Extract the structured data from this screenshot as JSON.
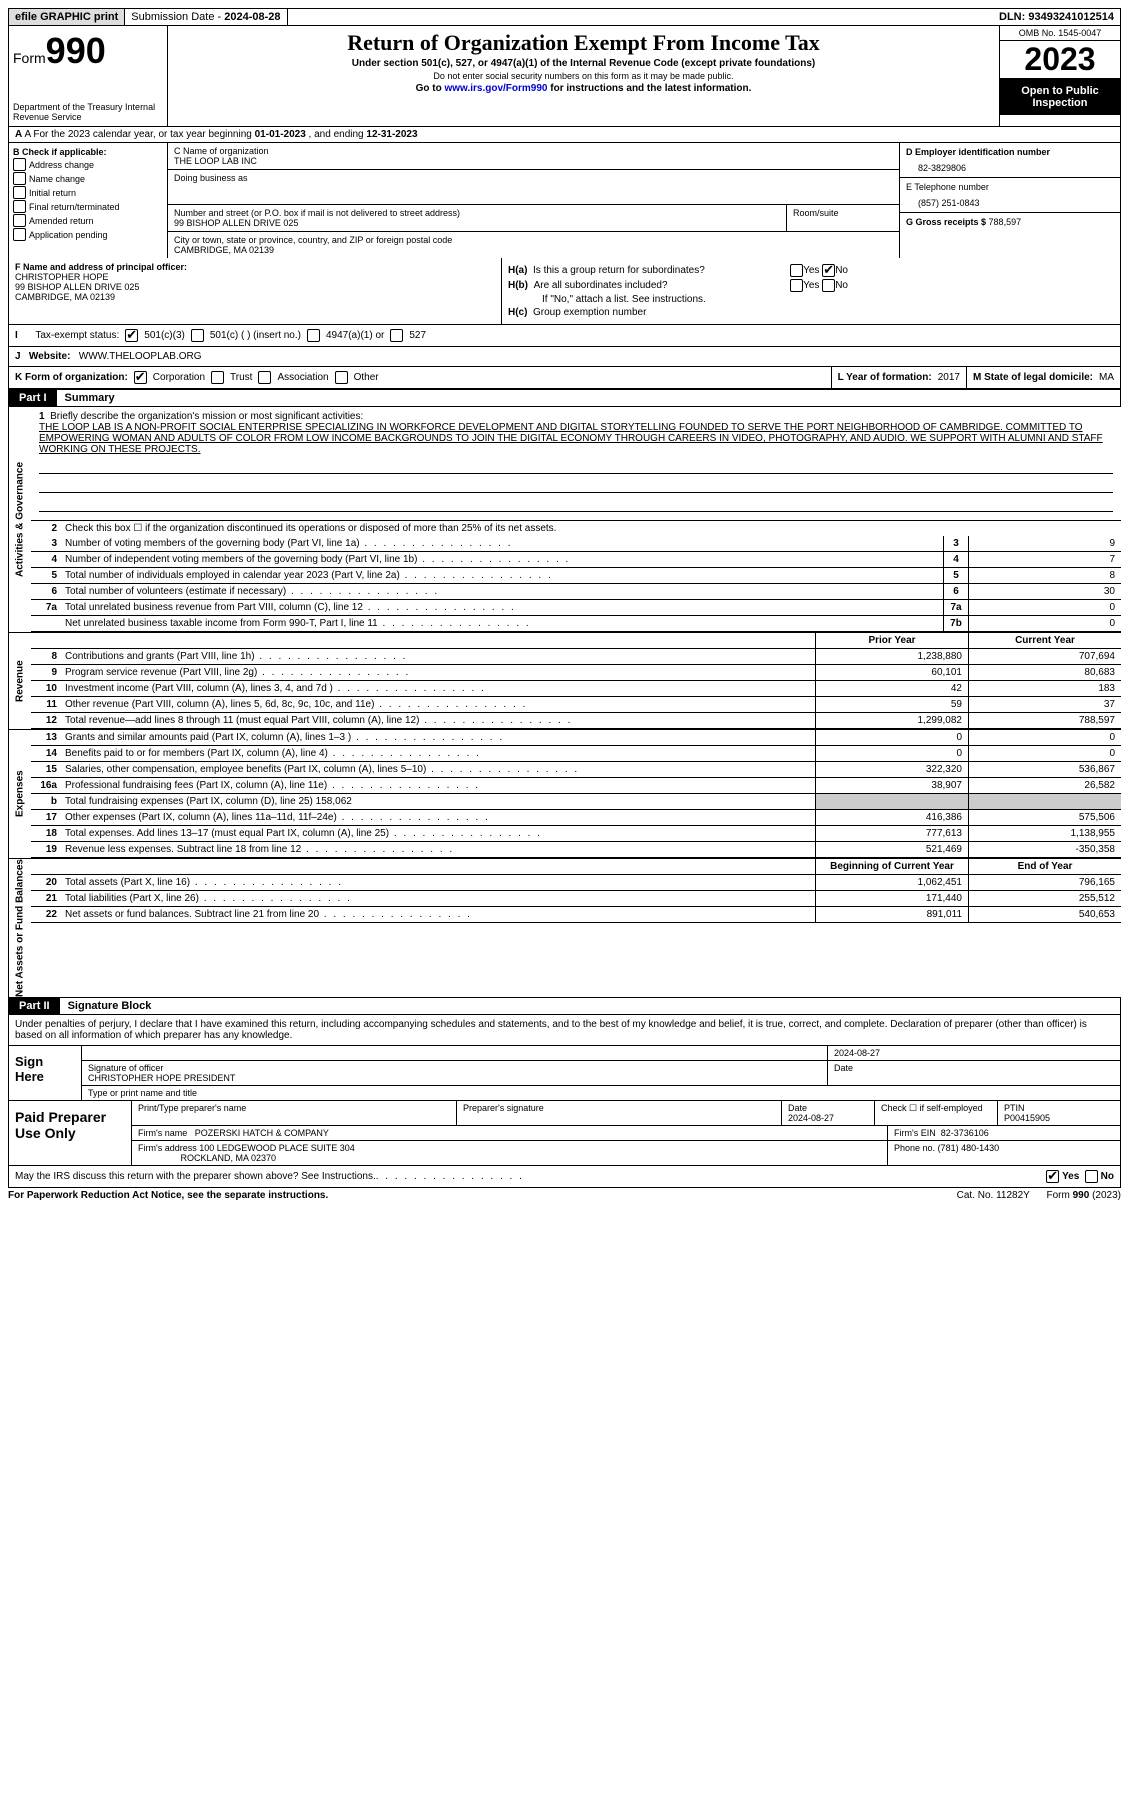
{
  "topbar": {
    "efile": "efile GRAPHIC print",
    "submission_label": "Submission Date - ",
    "submission_date": "2024-08-28",
    "dln_label": "DLN: ",
    "dln": "93493241012514"
  },
  "header": {
    "form_label": "Form",
    "form_num": "990",
    "dept": "Department of the Treasury Internal Revenue Service",
    "title": "Return of Organization Exempt From Income Tax",
    "sub1": "Under section 501(c), 527, or 4947(a)(1) of the Internal Revenue Code (except private foundations)",
    "sub2": "Do not enter social security numbers on this form as it may be made public.",
    "sub3_pre": "Go to ",
    "sub3_link": "www.irs.gov/Form990",
    "sub3_post": " for instructions and the latest information.",
    "omb": "OMB No. 1545-0047",
    "year": "2023",
    "open": "Open to Public Inspection"
  },
  "rowA": {
    "pre": "A For the 2023 calendar year, or tax year beginning ",
    "begin": "01-01-2023",
    "mid": " , and ending ",
    "end": "12-31-2023"
  },
  "colB": {
    "label": "B Check if applicable:",
    "items": [
      "Address change",
      "Name change",
      "Initial return",
      "Final return/terminated",
      "Amended return",
      "Application pending"
    ]
  },
  "colC": {
    "name_label": "C Name of organization",
    "name": "THE LOOP LAB INC",
    "dba_label": "Doing business as",
    "addr_label": "Number and street (or P.O. box if mail is not delivered to street address)",
    "addr": "99 BISHOP ALLEN DRIVE 025",
    "room_label": "Room/suite",
    "city_label": "City or town, state or province, country, and ZIP or foreign postal code",
    "city": "CAMBRIDGE, MA  02139"
  },
  "colD": {
    "ein_label": "D Employer identification number",
    "ein": "82-3829806",
    "phone_label": "E Telephone number",
    "phone": "(857) 251-0843",
    "gross_label": "G Gross receipts $ ",
    "gross": "788,597"
  },
  "rowF": {
    "label": "F Name and address of principal officer:",
    "name": "CHRISTOPHER HOPE",
    "addr1": "99 BISHOP ALLEN DRIVE 025",
    "addr2": "CAMBRIDGE, MA  02139"
  },
  "rowH": {
    "ha": "Is this a group return for subordinates?",
    "hb": "Are all subordinates included?",
    "hb_note": "If \"No,\" attach a list. See instructions.",
    "hc": "Group exemption number",
    "ha_label": "H(a)",
    "hb_label": "H(b)",
    "hc_label": "H(c)",
    "yes": "Yes",
    "no": "No"
  },
  "rowI": {
    "label": "Tax-exempt status:",
    "opt1": "501(c)(3)",
    "opt2": "501(c) (  ) (insert no.)",
    "opt3": "4947(a)(1) or",
    "opt4": "527"
  },
  "rowJ": {
    "label": "Website:",
    "value": "WWW.THELOOPLAB.ORG"
  },
  "rowK": {
    "label": "K Form of organization:",
    "opts": [
      "Corporation",
      "Trust",
      "Association",
      "Other"
    ],
    "L": "L Year of formation: ",
    "L_val": "2017",
    "M": "M State of legal domicile: ",
    "M_val": "MA"
  },
  "part1": {
    "tag": "Part I",
    "title": "Summary"
  },
  "mission": {
    "q": "Briefly describe the organization's mission or most significant activities:",
    "text": "THE LOOP LAB IS A NON-PROFIT SOCIAL ENTERPRISE SPECIALIZING IN WORKFORCE DEVELOPMENT AND DIGITAL STORYTELLING FOUNDED TO SERVE THE PORT NEIGHBORHOOD OF CAMBRIDGE. COMMITTED TO EMPOWERING WOMAN AND ADULTS OF COLOR FROM LOW INCOME BACKGROUNDS TO JOIN THE DIGITAL ECONOMY THROUGH CAREERS IN VIDEO, PHOTOGRAPHY, AND AUDIO. WE SUPPORT WITH ALUMNI AND STAFF WORKING ON THESE PROJECTS."
  },
  "lines_gov": [
    {
      "n": "2",
      "t": "Check this box  ☐  if the organization discontinued its operations or disposed of more than 25% of its net assets."
    },
    {
      "n": "3",
      "t": "Number of voting members of the governing body (Part VI, line 1a)",
      "box": "3",
      "v": "9"
    },
    {
      "n": "4",
      "t": "Number of independent voting members of the governing body (Part VI, line 1b)",
      "box": "4",
      "v": "7"
    },
    {
      "n": "5",
      "t": "Total number of individuals employed in calendar year 2023 (Part V, line 2a)",
      "box": "5",
      "v": "8"
    },
    {
      "n": "6",
      "t": "Total number of volunteers (estimate if necessary)",
      "box": "6",
      "v": "30"
    },
    {
      "n": "7a",
      "t": "Total unrelated business revenue from Part VIII, column (C), line 12",
      "box": "7a",
      "v": "0"
    },
    {
      "n": "",
      "t": "Net unrelated business taxable income from Form 990-T, Part I, line 11",
      "box": "7b",
      "v": "0"
    }
  ],
  "yearhdr": {
    "prior": "Prior Year",
    "current": "Current Year",
    "begin": "Beginning of Current Year",
    "end": "End of Year"
  },
  "lines_rev": [
    {
      "n": "8",
      "t": "Contributions and grants (Part VIII, line 1h)",
      "p": "1,238,880",
      "c": "707,694"
    },
    {
      "n": "9",
      "t": "Program service revenue (Part VIII, line 2g)",
      "p": "60,101",
      "c": "80,683"
    },
    {
      "n": "10",
      "t": "Investment income (Part VIII, column (A), lines 3, 4, and 7d )",
      "p": "42",
      "c": "183"
    },
    {
      "n": "11",
      "t": "Other revenue (Part VIII, column (A), lines 5, 6d, 8c, 9c, 10c, and 11e)",
      "p": "59",
      "c": "37"
    },
    {
      "n": "12",
      "t": "Total revenue—add lines 8 through 11 (must equal Part VIII, column (A), line 12)",
      "p": "1,299,082",
      "c": "788,597"
    }
  ],
  "lines_exp": [
    {
      "n": "13",
      "t": "Grants and similar amounts paid (Part IX, column (A), lines 1–3 )",
      "p": "0",
      "c": "0"
    },
    {
      "n": "14",
      "t": "Benefits paid to or for members (Part IX, column (A), line 4)",
      "p": "0",
      "c": "0"
    },
    {
      "n": "15",
      "t": "Salaries, other compensation, employee benefits (Part IX, column (A), lines 5–10)",
      "p": "322,320",
      "c": "536,867"
    },
    {
      "n": "16a",
      "t": "Professional fundraising fees (Part IX, column (A), line 11e)",
      "p": "38,907",
      "c": "26,582"
    },
    {
      "n": "b",
      "t": "Total fundraising expenses (Part IX, column (D), line 25) 158,062",
      "shaded": true
    },
    {
      "n": "17",
      "t": "Other expenses (Part IX, column (A), lines 11a–11d, 11f–24e)",
      "p": "416,386",
      "c": "575,506"
    },
    {
      "n": "18",
      "t": "Total expenses. Add lines 13–17 (must equal Part IX, column (A), line 25)",
      "p": "777,613",
      "c": "1,138,955"
    },
    {
      "n": "19",
      "t": "Revenue less expenses. Subtract line 18 from line 12",
      "p": "521,469",
      "c": "-350,358"
    }
  ],
  "lines_net": [
    {
      "n": "20",
      "t": "Total assets (Part X, line 16)",
      "p": "1,062,451",
      "c": "796,165"
    },
    {
      "n": "21",
      "t": "Total liabilities (Part X, line 26)",
      "p": "171,440",
      "c": "255,512"
    },
    {
      "n": "22",
      "t": "Net assets or fund balances. Subtract line 21 from line 20",
      "p": "891,011",
      "c": "540,653"
    }
  ],
  "vtabs": {
    "gov": "Activities & Governance",
    "rev": "Revenue",
    "exp": "Expenses",
    "net": "Net Assets or Fund Balances"
  },
  "part2": {
    "tag": "Part II",
    "title": "Signature Block"
  },
  "sig": {
    "decl": "Under penalties of perjury, I declare that I have examined this return, including accompanying schedules and statements, and to the best of my knowledge and belief, it is true, correct, and complete. Declaration of preparer (other than officer) is based on all information of which preparer has any knowledge.",
    "sign_here": "Sign Here",
    "sig_officer": "Signature of officer",
    "officer": "CHRISTOPHER HOPE PRESIDENT",
    "type_name": "Type or print name and title",
    "date_label": "Date",
    "date": "2024-08-27",
    "paid": "Paid Preparer Use Only",
    "prep_name_label": "Print/Type preparer's name",
    "prep_sig_label": "Preparer's signature",
    "prep_date": "2024-08-27",
    "check_label": "Check ☐ if self-employed",
    "ptin_label": "PTIN",
    "ptin": "P00415905",
    "firm_name_label": "Firm's name",
    "firm_name": "POZERSKI HATCH & COMPANY",
    "firm_ein_label": "Firm's EIN",
    "firm_ein": "82-3736106",
    "firm_addr_label": "Firm's address",
    "firm_addr": "100 LEDGEWOOD PLACE SUITE 304",
    "firm_city": "ROCKLAND, MA  02370",
    "firm_phone_label": "Phone no.",
    "firm_phone": "(781) 480-1430"
  },
  "footer": {
    "discuss": "May the IRS discuss this return with the preparer shown above? See Instructions.",
    "yes": "Yes",
    "no": "No",
    "paperwork": "For Paperwork Reduction Act Notice, see the separate instructions.",
    "cat": "Cat. No. 11282Y",
    "form": "Form 990 (2023)"
  }
}
